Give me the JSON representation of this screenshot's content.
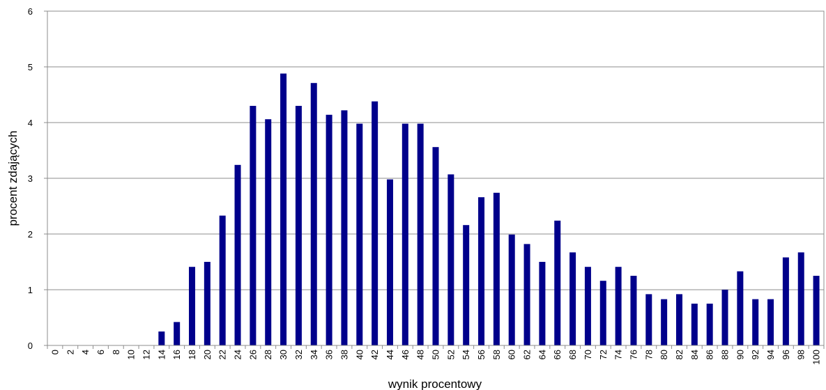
{
  "chart_data": {
    "type": "bar",
    "title": "",
    "xlabel": "wynik procentowy",
    "ylabel": "procent zdających",
    "ylim": [
      0,
      6
    ],
    "yticks": [
      0,
      1,
      2,
      3,
      4,
      5,
      6
    ],
    "grid": true,
    "legend": "none",
    "colors": {
      "bar": "#00008B",
      "grid": "#8C8C8C",
      "axis": "#8C8C8C"
    },
    "categories": [
      "0",
      "2",
      "4",
      "6",
      "8",
      "10",
      "12",
      "14",
      "16",
      "18",
      "20",
      "22",
      "24",
      "26",
      "28",
      "30",
      "32",
      "34",
      "36",
      "38",
      "40",
      "42",
      "44",
      "46",
      "48",
      "50",
      "52",
      "54",
      "56",
      "58",
      "60",
      "62",
      "64",
      "66",
      "68",
      "70",
      "72",
      "74",
      "76",
      "78",
      "80",
      "82",
      "84",
      "86",
      "88",
      "90",
      "92",
      "94",
      "96",
      "98",
      "100"
    ],
    "values": [
      0,
      0,
      0,
      0,
      0,
      0,
      0,
      0.25,
      0.42,
      1.41,
      1.5,
      2.33,
      3.24,
      4.3,
      4.06,
      4.88,
      4.3,
      4.71,
      4.14,
      4.22,
      3.98,
      4.38,
      2.98,
      3.98,
      3.98,
      3.56,
      3.07,
      2.16,
      2.66,
      2.74,
      1.99,
      1.82,
      1.5,
      2.24,
      1.67,
      1.41,
      1.16,
      1.41,
      1.25,
      0.92,
      0.83,
      0.92,
      0.75,
      0.75,
      1.0,
      1.33,
      0.83,
      0.83,
      1.58,
      1.67,
      1.25
    ]
  }
}
